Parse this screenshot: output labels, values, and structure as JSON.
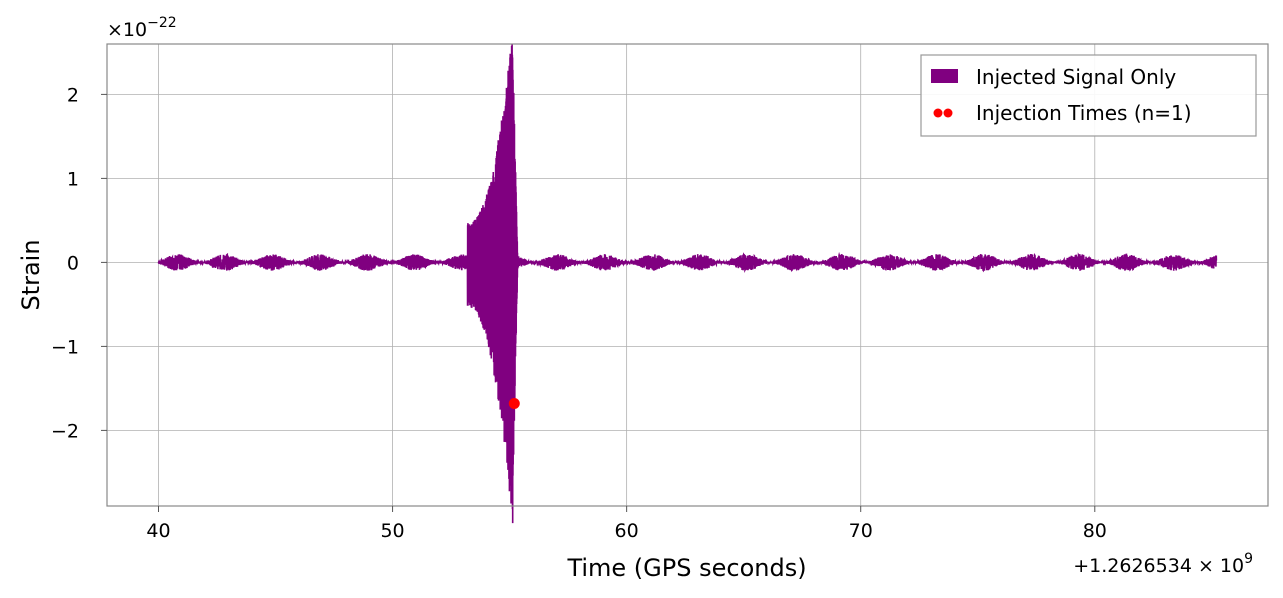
{
  "chart_data": {
    "type": "line",
    "title": "",
    "xlabel": "Time (GPS seconds)",
    "ylabel": "Strain",
    "x_offset_text": "+1.2626534 × 10",
    "x_offset_exponent": "9",
    "y_scale_text": "×10",
    "y_scale_exponent": "−22",
    "xlim": [
      37.8,
      87.4
    ],
    "ylim": [
      -2.9,
      2.6
    ],
    "x_ticks": [
      40,
      50,
      60,
      70,
      80
    ],
    "x_tick_labels": [
      "40",
      "50",
      "60",
      "70",
      "80"
    ],
    "y_ticks": [
      -2,
      -1,
      0,
      1,
      2
    ],
    "y_tick_labels": [
      "−2",
      "−1",
      "0",
      "1",
      "2"
    ],
    "grid": true,
    "legend_position": "top-right",
    "series": [
      {
        "name": "Injected Signal Only",
        "color": "#800080",
        "x_range": [
          40,
          85.2
        ],
        "noise_amplitude": 0.1,
        "burst": {
          "start": 53.2,
          "end": 55.35,
          "peak_time": 55.15,
          "max_positive": 2.35,
          "min_negative": -2.65
        }
      },
      {
        "name": "Injection Times (n=1)",
        "type": "scatter",
        "color": "#ff0000",
        "points": [
          [
            55.2,
            -1.68
          ]
        ]
      }
    ]
  }
}
